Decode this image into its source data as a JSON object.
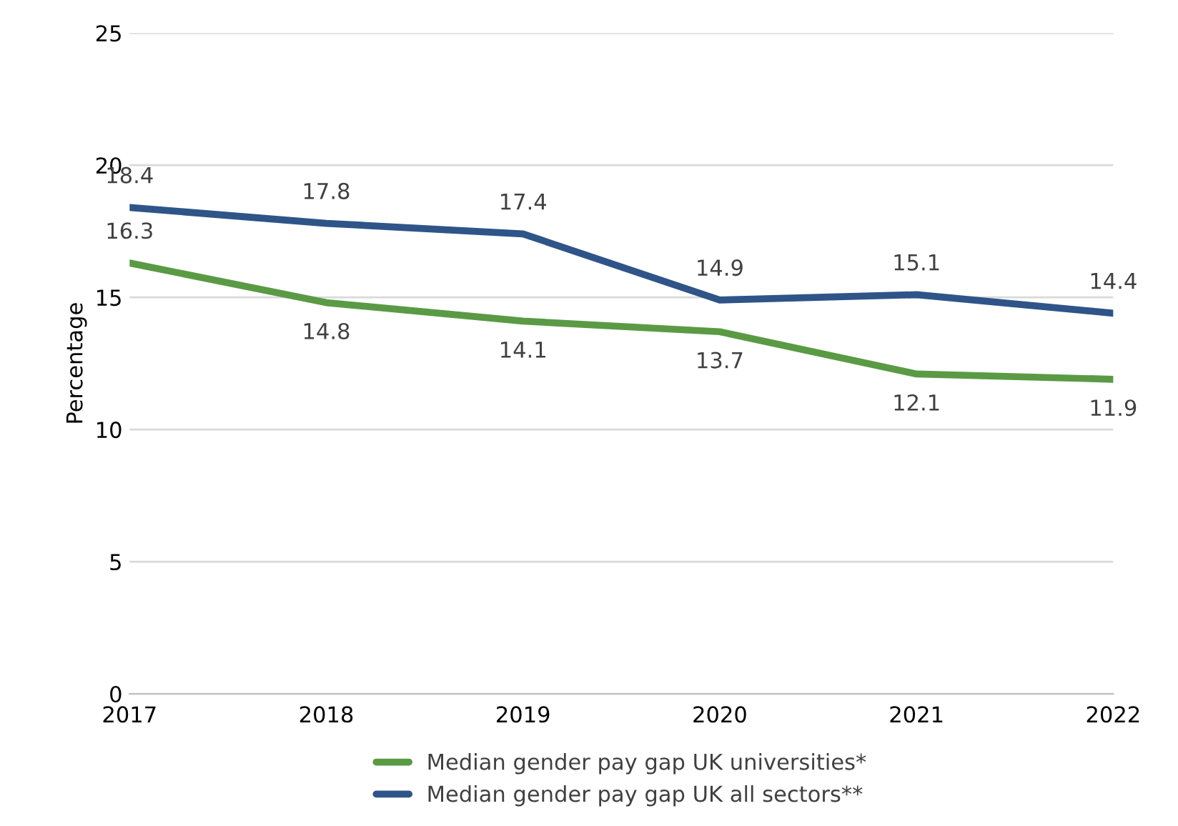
{
  "chart_data": {
    "type": "line",
    "ylabel": "Percentage",
    "categories": [
      "2017",
      "2018",
      "2019",
      "2020",
      "2021",
      "2022"
    ],
    "series": [
      {
        "name": "Median gender pay gap UK universities*",
        "color": "#5b9a45",
        "values": [
          16.3,
          14.8,
          14.1,
          13.7,
          12.1,
          11.9
        ]
      },
      {
        "name": "Median gender pay gap UK all sectors**",
        "color": "#2f5488",
        "values": [
          18.4,
          17.8,
          17.4,
          14.9,
          15.1,
          14.4
        ]
      }
    ],
    "ylim": [
      0,
      25
    ],
    "yticks": [
      0,
      5,
      10,
      15,
      20,
      25
    ],
    "grid": "y",
    "legend": "bottom",
    "data_labels": true,
    "marker": "none",
    "line_style": "solid"
  }
}
